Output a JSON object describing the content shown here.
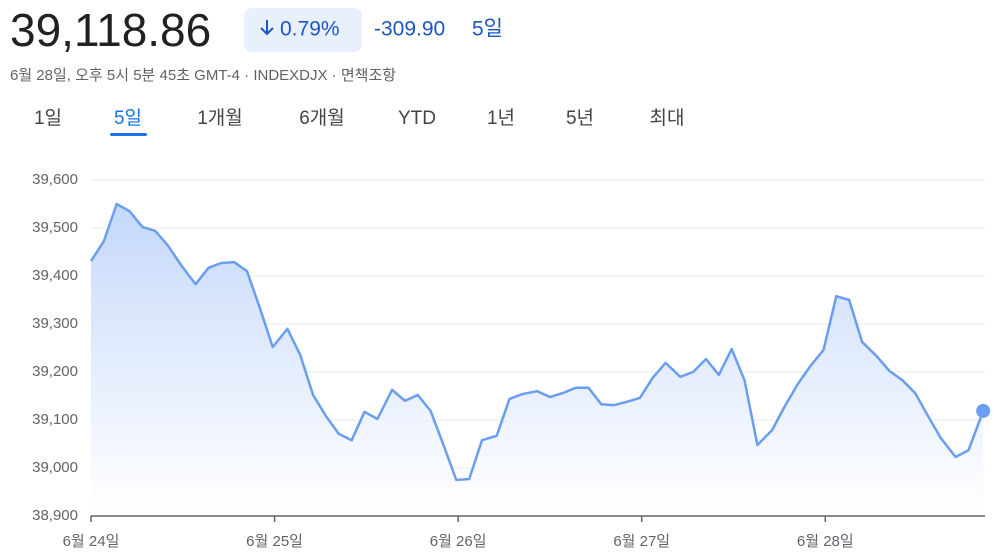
{
  "header": {
    "price": "39,118.86",
    "change_percent": "0.79%",
    "change_value": "-309.90",
    "period": "5일",
    "subtitle": "6월 28일, 오후 5시 5분 45초 GMT-4 · INDEXDJX · 면책조항"
  },
  "tabs": [
    "1일",
    "5일",
    "1개월",
    "6개월",
    "YTD",
    "1년",
    "5년",
    "최대"
  ],
  "chart_data": {
    "type": "area",
    "color": "#6a9ef0",
    "grid": true,
    "x": [
      0,
      0.07,
      0.14,
      0.21,
      0.28,
      0.35,
      0.42,
      0.49,
      0.57,
      0.64,
      0.71,
      0.78,
      0.85,
      0.92,
      0.99,
      1.07,
      1.14,
      1.21,
      1.28,
      1.35,
      1.42,
      1.49,
      1.56,
      1.64,
      1.71,
      1.78,
      1.85,
      1.92,
      1.99,
      2.06,
      2.13,
      2.21,
      2.28,
      2.35,
      2.43,
      2.5,
      2.57,
      2.64,
      2.71,
      2.78,
      2.85,
      2.92,
      2.99,
      3.06,
      3.13,
      3.21,
      3.28,
      3.35,
      3.42,
      3.49,
      3.56,
      3.63,
      3.71,
      3.78,
      3.85,
      3.92,
      3.99,
      4.06,
      4.13,
      4.2,
      4.28,
      4.35,
      4.42,
      4.49,
      4.56,
      4.63,
      4.71,
      4.78,
      4.86
    ],
    "values": [
      39431,
      39473,
      39550,
      39535,
      39502,
      39494,
      39463,
      39423,
      39383,
      39417,
      39427,
      39429,
      39410,
      39333,
      39252,
      39290,
      39235,
      39152,
      39108,
      39071,
      39058,
      39117,
      39102,
      39163,
      39140,
      39152,
      39119,
      39048,
      38975,
      38977,
      39058,
      39067,
      39144,
      39154,
      39160,
      39148,
      39156,
      39167,
      39167,
      39133,
      39131,
      39138,
      39146,
      39188,
      39219,
      39190,
      39200,
      39227,
      39194,
      39248,
      39183,
      39048,
      39079,
      39129,
      39175,
      39213,
      39246,
      39358,
      39350,
      39263,
      39233,
      39202,
      39183,
      39156,
      39108,
      39062,
      39023,
      39037,
      39119
    ],
    "xlim": [
      0,
      4.87
    ],
    "xticks": [
      {
        "value": 0,
        "label": "6월 24일"
      },
      {
        "value": 1,
        "label": "6월 25일"
      },
      {
        "value": 2,
        "label": "6월 26일"
      },
      {
        "value": 3,
        "label": "6월 27일"
      },
      {
        "value": 4,
        "label": "6월 28일"
      }
    ],
    "ylim": [
      38900,
      39600
    ],
    "yticks": [
      {
        "value": 38900,
        "label": "38,900"
      },
      {
        "value": 39000,
        "label": "39,000"
      },
      {
        "value": 39100,
        "label": "39,100"
      },
      {
        "value": 39200,
        "label": "39,200"
      },
      {
        "value": 39300,
        "label": "39,300"
      },
      {
        "value": 39400,
        "label": "39,400"
      },
      {
        "value": 39500,
        "label": "39,500"
      },
      {
        "value": 39600,
        "label": "39,600"
      }
    ]
  }
}
